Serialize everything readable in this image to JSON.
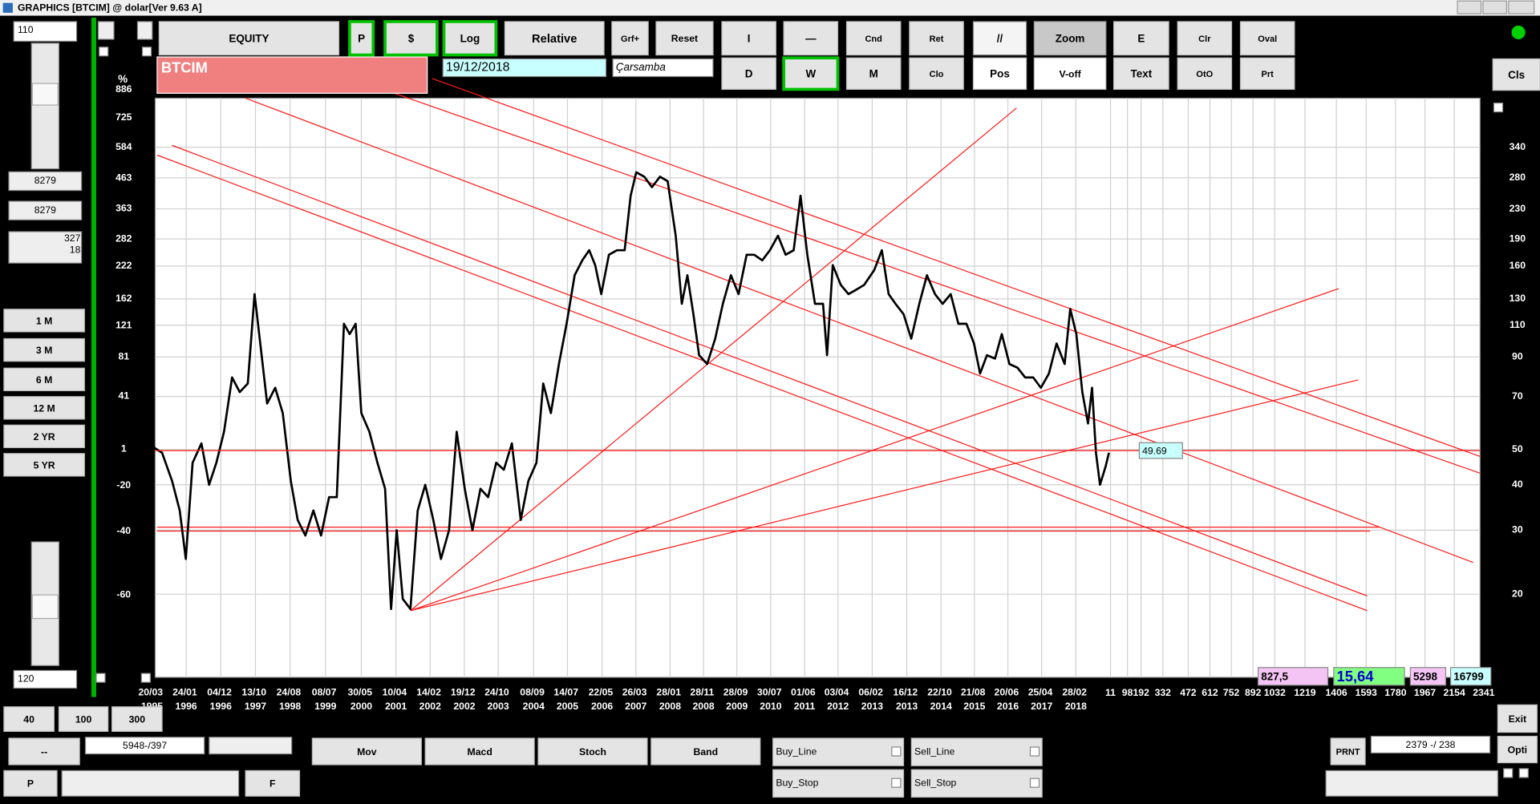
{
  "ui": {
    "title_bar": "GRAPHICS  [BTCIM] @ dolar[Ver 9.63 A]",
    "left": {
      "count_input": "110",
      "value_1": "8279",
      "value_2": "8279",
      "value_3": "327",
      "value_4": "18",
      "periods": [
        "1 M",
        "3 M",
        "6 M",
        "12 M",
        "2 YR",
        "5 YR"
      ],
      "bottom_input": "120"
    },
    "toolbar": [
      "EQUITY",
      "P",
      "$",
      "Log",
      "Relative",
      "Grf+",
      "Reset",
      "I",
      "—",
      "Cnd",
      "Ret",
      "//",
      "Zoom",
      "E",
      "Clr",
      "Oval",
      "D",
      "W",
      "M",
      "Clo",
      "Pos",
      "V-off",
      "Text",
      "OtO",
      "Prt",
      "Cls"
    ],
    "date": "19/12/2018",
    "weekday": "Çarsamba",
    "stats": [
      "827,5",
      "15,64",
      "5298",
      "16799"
    ],
    "bottom": {
      "buttons": [
        "40",
        "100",
        "300",
        "--",
        "Mov",
        "Macd",
        "Stoch",
        "Band",
        "PRNT",
        "Exit",
        "Opti",
        "P",
        "F"
      ],
      "fields": [
        "5948-/397",
        "2379 -/ 238"
      ],
      "checks": [
        "Buy_Line",
        "Sell_Line",
        "Buy_Stop",
        "Sell_Stop"
      ]
    }
  },
  "chart_data": {
    "type": "line",
    "title": "BTCIM",
    "color": "#000000",
    "log_scale": true,
    "grid": true,
    "xlim": [
      1995.29,
      2028.2
    ],
    "ylim": [
      11.8,
      464
    ],
    "yticks": [
      340,
      280,
      230,
      190,
      160,
      130,
      110,
      90,
      70,
      50,
      40,
      30,
      20
    ],
    "y2_label": "%",
    "y2ticks": [
      886,
      725,
      584,
      463,
      363,
      282,
      222,
      162,
      121,
      81,
      41,
      1,
      -20,
      -40,
      -60
    ],
    "last_value": 49.69,
    "xticks": [
      {
        "value": 1995.21,
        "label": "20/03 1995"
      },
      {
        "value": 1996.06,
        "label": "24/01 1996"
      },
      {
        "value": 1996.92,
        "label": "04/12 1996"
      },
      {
        "value": 1997.78,
        "label": "13/10 1997"
      },
      {
        "value": 1998.64,
        "label": "24/08 1998"
      },
      {
        "value": 1999.52,
        "label": "08/07 1999"
      },
      {
        "value": 2000.41,
        "label": "30/05 2000"
      },
      {
        "value": 2001.27,
        "label": "10/04 2001"
      },
      {
        "value": 2002.12,
        "label": "14/02 2002"
      },
      {
        "value": 2002.97,
        "label": "19/12 2002"
      },
      {
        "value": 2003.81,
        "label": "24/10 2003"
      },
      {
        "value": 2004.69,
        "label": "08/09 2004"
      },
      {
        "value": 2005.53,
        "label": "14/07 2005"
      },
      {
        "value": 2006.39,
        "label": "22/05 2006"
      },
      {
        "value": 2007.23,
        "label": "26/03 2007"
      },
      {
        "value": 2008.08,
        "label": "28/01 2008"
      },
      {
        "value": 2008.91,
        "label": "28/11 2008"
      },
      {
        "value": 2009.74,
        "label": "28/09 2009"
      },
      {
        "value": 2010.58,
        "label": "30/07 2010"
      },
      {
        "value": 2011.42,
        "label": "01/06 2011"
      },
      {
        "value": 2012.25,
        "label": "03/04 2012"
      },
      {
        "value": 2013.1,
        "label": "06/02 2013"
      },
      {
        "value": 2013.96,
        "label": "16/12 2013"
      },
      {
        "value": 2014.81,
        "label": "22/10 2014"
      },
      {
        "value": 2015.64,
        "label": "21/08 2015"
      },
      {
        "value": 2016.47,
        "label": "20/06 2016"
      },
      {
        "value": 2017.31,
        "label": "25/04 2017"
      },
      {
        "value": 2018.16,
        "label": "28/02 2018"
      },
      {
        "value": 2019.02,
        "label": "11"
      },
      {
        "value": 2019.44,
        "label": "98"
      },
      {
        "value": 2019.78,
        "label": "192"
      },
      {
        "value": 2020.32,
        "label": "332"
      },
      {
        "value": 2020.95,
        "label": "472"
      },
      {
        "value": 2021.49,
        "label": "612"
      },
      {
        "value": 2022.02,
        "label": "752"
      },
      {
        "value": 2022.56,
        "label": "892"
      },
      {
        "value": 2023.1,
        "label": "1032"
      },
      {
        "value": 2023.85,
        "label": "1219"
      },
      {
        "value": 2024.63,
        "label": "1406"
      },
      {
        "value": 2025.37,
        "label": "1593"
      },
      {
        "value": 2026.1,
        "label": "1780"
      },
      {
        "value": 2026.83,
        "label": "1967"
      },
      {
        "value": 2027.56,
        "label": "2154"
      },
      {
        "value": 2028.29,
        "label": "2341"
      }
    ],
    "x": [
      1995.22,
      1995.46,
      1995.71,
      1995.9,
      1996.05,
      1996.22,
      1996.44,
      1996.63,
      1996.81,
      1997.0,
      1997.2,
      1997.39,
      1997.59,
      1997.76,
      1997.9,
      1998.07,
      1998.27,
      1998.46,
      1998.66,
      1998.83,
      1999.02,
      1999.22,
      1999.41,
      1999.61,
      1999.8,
      1999.98,
      2000.12,
      2000.27,
      2000.41,
      2000.61,
      2000.81,
      2001.0,
      2001.15,
      2001.29,
      2001.44,
      2001.63,
      2001.81,
      2002.0,
      2002.2,
      2002.39,
      2002.59,
      2002.78,
      2002.98,
      2003.17,
      2003.37,
      2003.56,
      2003.76,
      2003.95,
      2004.15,
      2004.37,
      2004.56,
      2004.76,
      2004.93,
      2005.12,
      2005.32,
      2005.51,
      2005.71,
      2005.9,
      2006.07,
      2006.22,
      2006.37,
      2006.56,
      2006.76,
      2006.95,
      2007.1,
      2007.24,
      2007.44,
      2007.63,
      2007.83,
      2008.02,
      2008.22,
      2008.37,
      2008.51,
      2008.66,
      2008.8,
      2009.0,
      2009.2,
      2009.39,
      2009.59,
      2009.78,
      2009.98,
      2010.17,
      2010.37,
      2010.56,
      2010.76,
      2010.95,
      2011.15,
      2011.32,
      2011.49,
      2011.68,
      2011.88,
      2011.98,
      2012.12,
      2012.32,
      2012.51,
      2012.71,
      2012.9,
      2013.15,
      2013.34,
      2013.51,
      2013.68,
      2013.88,
      2014.07,
      2014.27,
      2014.46,
      2014.66,
      2014.85,
      2015.05,
      2015.24,
      2015.44,
      2015.63,
      2015.78,
      2015.95,
      2016.15,
      2016.32,
      2016.51,
      2016.71,
      2016.9,
      2017.1,
      2017.29,
      2017.49,
      2017.68,
      2017.88,
      2018.02,
      2018.17,
      2018.32,
      2018.46,
      2018.56,
      2018.66,
      2018.76,
      2018.9,
      2018.98
    ],
    "values": [
      51,
      49,
      41,
      34,
      25,
      46,
      52,
      40,
      46,
      56,
      79,
      72,
      76,
      134,
      98,
      67,
      74,
      63,
      41,
      32,
      29,
      34,
      29,
      37,
      37,
      111,
      104,
      111,
      63,
      56,
      46,
      39,
      18.2,
      30,
      19.4,
      18.2,
      34,
      40,
      32,
      25,
      30,
      56,
      39,
      30,
      39,
      37,
      46,
      44,
      52,
      32,
      41,
      46,
      76,
      63,
      86,
      111,
      151,
      166,
      177,
      161,
      134,
      172,
      177,
      177,
      250,
      290,
      282,
      264,
      282,
      274,
      194,
      126,
      151,
      118,
      91,
      86,
      101,
      126,
      151,
      134,
      172,
      172,
      166,
      177,
      194,
      172,
      177,
      250,
      172,
      126,
      126,
      91,
      161,
      142,
      134,
      138,
      142,
      156,
      177,
      134,
      126,
      118,
      101,
      126,
      151,
      134,
      126,
      134,
      111,
      111,
      98,
      81,
      91,
      89,
      104,
      86,
      84,
      79,
      79,
      74,
      81,
      98,
      86,
      122,
      104,
      72,
      59,
      74,
      49,
      40,
      45,
      49
    ]
  }
}
